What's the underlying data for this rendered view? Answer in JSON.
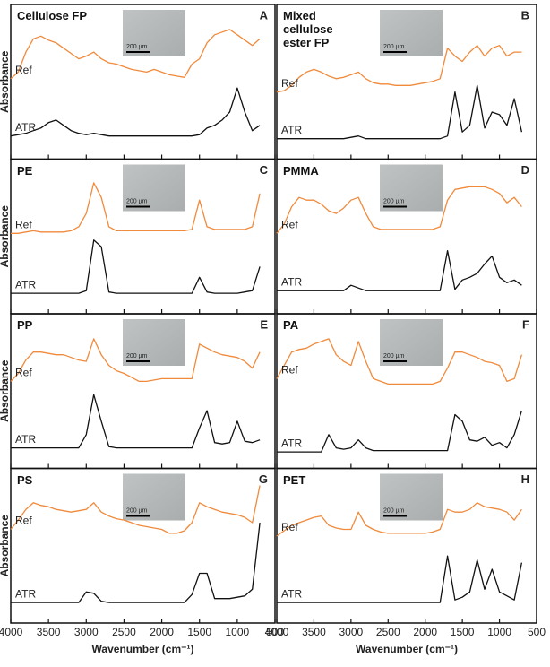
{
  "chart_data": [
    {
      "type": "line",
      "title": "Cellulose FP",
      "panel_label": "A",
      "inset_label": "200 µm",
      "y_label": "Absorbance",
      "x": [
        4000,
        3900,
        3800,
        3700,
        3600,
        3500,
        3400,
        3300,
        3200,
        3100,
        3000,
        2900,
        2800,
        2700,
        2600,
        2500,
        2400,
        2300,
        2200,
        2100,
        2000,
        1900,
        1800,
        1700,
        1600,
        1500,
        1400,
        1300,
        1200,
        1100,
        1000,
        900,
        800,
        700
      ],
      "series": [
        {
          "name": "Ref",
          "color": "#f08a3c",
          "values": [
            0.55,
            0.6,
            0.75,
            0.85,
            0.87,
            0.84,
            0.82,
            0.78,
            0.74,
            0.7,
            0.72,
            0.75,
            0.7,
            0.67,
            0.66,
            0.64,
            0.62,
            0.61,
            0.6,
            0.62,
            0.6,
            0.58,
            0.57,
            0.56,
            0.66,
            0.7,
            0.82,
            0.88,
            0.9,
            0.92,
            0.88,
            0.84,
            0.8,
            0.85
          ]
        },
        {
          "name": "ATR",
          "color": "#111111",
          "values": [
            0.12,
            0.13,
            0.14,
            0.16,
            0.18,
            0.22,
            0.24,
            0.2,
            0.16,
            0.14,
            0.13,
            0.14,
            0.13,
            0.12,
            0.12,
            0.12,
            0.12,
            0.12,
            0.12,
            0.12,
            0.12,
            0.12,
            0.12,
            0.12,
            0.12,
            0.13,
            0.18,
            0.2,
            0.24,
            0.3,
            0.48,
            0.3,
            0.16,
            0.2
          ]
        }
      ],
      "xlim": [
        4000,
        500
      ],
      "xticks": [
        4000,
        3500,
        3000,
        2500,
        2000,
        1500,
        1000,
        500
      ],
      "ylim": [
        0,
        1
      ]
    },
    {
      "type": "line",
      "title": "Mixed cellulose ester FP",
      "panel_label": "B",
      "inset_label": "200 µm",
      "x": [
        4000,
        3900,
        3800,
        3700,
        3600,
        3500,
        3400,
        3300,
        3200,
        3100,
        3000,
        2900,
        2800,
        2700,
        2600,
        2500,
        2400,
        2300,
        2200,
        2100,
        2000,
        1900,
        1800,
        1700,
        1600,
        1500,
        1400,
        1300,
        1200,
        1100,
        1000,
        900,
        800,
        700
      ],
      "series": [
        {
          "name": "Ref",
          "color": "#f08a3c",
          "values": [
            0.45,
            0.46,
            0.5,
            0.56,
            0.6,
            0.62,
            0.6,
            0.57,
            0.55,
            0.56,
            0.58,
            0.6,
            0.55,
            0.52,
            0.51,
            0.51,
            0.5,
            0.5,
            0.5,
            0.51,
            0.52,
            0.53,
            0.55,
            0.78,
            0.72,
            0.68,
            0.75,
            0.8,
            0.72,
            0.78,
            0.8,
            0.72,
            0.75,
            0.75
          ]
        },
        {
          "name": "ATR",
          "color": "#111111",
          "values": [
            0.1,
            0.1,
            0.1,
            0.1,
            0.1,
            0.1,
            0.1,
            0.1,
            0.1,
            0.1,
            0.11,
            0.12,
            0.1,
            0.1,
            0.1,
            0.1,
            0.1,
            0.1,
            0.1,
            0.1,
            0.1,
            0.1,
            0.1,
            0.12,
            0.45,
            0.15,
            0.2,
            0.5,
            0.18,
            0.3,
            0.28,
            0.2,
            0.4,
            0.15
          ]
        }
      ],
      "xlim": [
        4000,
        500
      ],
      "xticks": [
        4000,
        3500,
        3000,
        2500,
        2000,
        1500,
        1000,
        500
      ],
      "ylim": [
        0,
        1
      ]
    },
    {
      "type": "line",
      "title": "PE",
      "panel_label": "C",
      "inset_label": "200 µm",
      "y_label": "Absorbance",
      "x": [
        4000,
        3900,
        3800,
        3700,
        3600,
        3500,
        3400,
        3300,
        3200,
        3100,
        3000,
        2900,
        2800,
        2700,
        2600,
        2500,
        2400,
        2300,
        2200,
        2100,
        2000,
        1900,
        1800,
        1700,
        1600,
        1500,
        1400,
        1300,
        1200,
        1100,
        1000,
        900,
        800,
        700
      ],
      "series": [
        {
          "name": "Ref",
          "color": "#f08a3c",
          "values": [
            0.55,
            0.55,
            0.56,
            0.57,
            0.56,
            0.56,
            0.56,
            0.56,
            0.57,
            0.6,
            0.7,
            0.93,
            0.82,
            0.6,
            0.57,
            0.57,
            0.57,
            0.57,
            0.57,
            0.57,
            0.57,
            0.57,
            0.57,
            0.57,
            0.58,
            0.8,
            0.6,
            0.58,
            0.58,
            0.58,
            0.58,
            0.58,
            0.6,
            0.85
          ]
        },
        {
          "name": "ATR",
          "color": "#111111",
          "values": [
            0.1,
            0.1,
            0.1,
            0.1,
            0.1,
            0.1,
            0.1,
            0.1,
            0.1,
            0.1,
            0.12,
            0.5,
            0.45,
            0.11,
            0.1,
            0.1,
            0.1,
            0.1,
            0.1,
            0.1,
            0.1,
            0.1,
            0.1,
            0.1,
            0.1,
            0.22,
            0.11,
            0.1,
            0.1,
            0.1,
            0.1,
            0.11,
            0.12,
            0.3
          ]
        }
      ],
      "xlim": [
        4000,
        500
      ],
      "xticks": [
        4000,
        3500,
        3000,
        2500,
        2000,
        1500,
        1000,
        500
      ],
      "ylim": [
        0,
        1
      ]
    },
    {
      "type": "line",
      "title": "PMMA",
      "panel_label": "D",
      "inset_label": "200 µm",
      "x": [
        4000,
        3900,
        3800,
        3700,
        3600,
        3500,
        3400,
        3300,
        3200,
        3100,
        3000,
        2900,
        2800,
        2700,
        2600,
        2500,
        2400,
        2300,
        2200,
        2100,
        2000,
        1900,
        1800,
        1700,
        1600,
        1500,
        1400,
        1300,
        1200,
        1100,
        1000,
        900,
        800,
        700
      ],
      "series": [
        {
          "name": "Ref",
          "color": "#f08a3c",
          "values": [
            0.55,
            0.62,
            0.75,
            0.82,
            0.8,
            0.8,
            0.77,
            0.72,
            0.7,
            0.74,
            0.8,
            0.82,
            0.7,
            0.6,
            0.58,
            0.58,
            0.58,
            0.58,
            0.58,
            0.58,
            0.58,
            0.58,
            0.6,
            0.8,
            0.88,
            0.89,
            0.9,
            0.9,
            0.9,
            0.88,
            0.85,
            0.78,
            0.82,
            0.75
          ]
        },
        {
          "name": "ATR",
          "color": "#111111",
          "values": [
            0.12,
            0.12,
            0.12,
            0.12,
            0.12,
            0.12,
            0.12,
            0.12,
            0.12,
            0.12,
            0.16,
            0.14,
            0.12,
            0.12,
            0.12,
            0.12,
            0.12,
            0.12,
            0.12,
            0.12,
            0.12,
            0.12,
            0.12,
            0.42,
            0.13,
            0.2,
            0.22,
            0.25,
            0.32,
            0.38,
            0.22,
            0.18,
            0.2,
            0.16
          ]
        }
      ],
      "xlim": [
        4000,
        500
      ],
      "xticks": [
        4000,
        3500,
        3000,
        2500,
        2000,
        1500,
        1000,
        500
      ],
      "ylim": [
        0,
        1
      ]
    },
    {
      "type": "line",
      "title": "PP",
      "panel_label": "E",
      "inset_label": "200 µm",
      "y_label": "Absorbance",
      "x": [
        4000,
        3900,
        3800,
        3700,
        3600,
        3500,
        3400,
        3300,
        3200,
        3100,
        3000,
        2900,
        2800,
        2700,
        2600,
        2500,
        2400,
        2300,
        2200,
        2100,
        2000,
        1900,
        1800,
        1700,
        1600,
        1500,
        1400,
        1300,
        1200,
        1100,
        1000,
        900,
        800,
        700
      ],
      "series": [
        {
          "name": "Ref",
          "color": "#f08a3c",
          "values": [
            0.6,
            0.66,
            0.76,
            0.82,
            0.82,
            0.81,
            0.8,
            0.8,
            0.78,
            0.76,
            0.75,
            0.92,
            0.8,
            0.72,
            0.68,
            0.66,
            0.63,
            0.6,
            0.6,
            0.61,
            0.62,
            0.62,
            0.62,
            0.62,
            0.62,
            0.88,
            0.85,
            0.82,
            0.8,
            0.79,
            0.78,
            0.75,
            0.7,
            0.82
          ]
        },
        {
          "name": "ATR",
          "color": "#111111",
          "values": [
            0.1,
            0.1,
            0.1,
            0.1,
            0.1,
            0.1,
            0.1,
            0.1,
            0.1,
            0.1,
            0.2,
            0.5,
            0.3,
            0.11,
            0.1,
            0.1,
            0.1,
            0.1,
            0.1,
            0.1,
            0.1,
            0.1,
            0.1,
            0.1,
            0.1,
            0.25,
            0.38,
            0.14,
            0.13,
            0.14,
            0.3,
            0.15,
            0.14,
            0.16
          ]
        }
      ],
      "xlim": [
        4000,
        500
      ],
      "xticks": [
        4000,
        3500,
        3000,
        2500,
        2000,
        1500,
        1000,
        500
      ],
      "ylim": [
        0,
        1
      ]
    },
    {
      "type": "line",
      "title": "PA",
      "panel_label": "F",
      "inset_label": "200 µm",
      "x": [
        4000,
        3900,
        3800,
        3700,
        3600,
        3500,
        3400,
        3300,
        3200,
        3100,
        3000,
        2900,
        2800,
        2700,
        2600,
        2500,
        2400,
        2300,
        2200,
        2100,
        2000,
        1900,
        1800,
        1700,
        1600,
        1500,
        1400,
        1300,
        1200,
        1100,
        1000,
        900,
        800,
        700
      ],
      "series": [
        {
          "name": "Ref",
          "color": "#f08a3c",
          "values": [
            0.62,
            0.72,
            0.82,
            0.84,
            0.85,
            0.88,
            0.9,
            0.92,
            0.8,
            0.75,
            0.72,
            0.9,
            0.75,
            0.62,
            0.6,
            0.58,
            0.58,
            0.58,
            0.58,
            0.58,
            0.58,
            0.58,
            0.6,
            0.7,
            0.82,
            0.82,
            0.8,
            0.78,
            0.75,
            0.74,
            0.72,
            0.6,
            0.62,
            0.8
          ]
        },
        {
          "name": "ATR",
          "color": "#111111",
          "values": [
            0.07,
            0.07,
            0.07,
            0.07,
            0.07,
            0.07,
            0.07,
            0.2,
            0.1,
            0.09,
            0.1,
            0.16,
            0.1,
            0.08,
            0.08,
            0.08,
            0.08,
            0.08,
            0.08,
            0.08,
            0.08,
            0.08,
            0.08,
            0.08,
            0.35,
            0.3,
            0.16,
            0.15,
            0.18,
            0.12,
            0.14,
            0.1,
            0.2,
            0.38
          ]
        }
      ],
      "xlim": [
        4000,
        500
      ],
      "xticks": [
        4000,
        3500,
        3000,
        2500,
        2000,
        1500,
        1000,
        500
      ],
      "ylim": [
        0,
        1
      ]
    },
    {
      "type": "line",
      "title": "PS",
      "panel_label": "G",
      "inset_label": "200 µm",
      "y_label": "Absorbance",
      "x_label": "Wavenumber (cm⁻¹)",
      "x": [
        4000,
        3900,
        3800,
        3700,
        3600,
        3500,
        3400,
        3300,
        3200,
        3100,
        3000,
        2900,
        2800,
        2700,
        2600,
        2500,
        2400,
        2300,
        2200,
        2100,
        2000,
        1900,
        1800,
        1700,
        1600,
        1500,
        1400,
        1300,
        1200,
        1100,
        1000,
        900,
        800,
        700
      ],
      "series": [
        {
          "name": "Ref",
          "color": "#f08a3c",
          "values": [
            0.65,
            0.72,
            0.8,
            0.85,
            0.83,
            0.82,
            0.8,
            0.79,
            0.78,
            0.79,
            0.8,
            0.85,
            0.78,
            0.75,
            0.73,
            0.72,
            0.7,
            0.68,
            0.67,
            0.66,
            0.65,
            0.62,
            0.62,
            0.64,
            0.7,
            0.85,
            0.82,
            0.8,
            0.78,
            0.77,
            0.76,
            0.74,
            0.7,
            0.98
          ]
        },
        {
          "name": "ATR",
          "color": "#111111",
          "values": [
            0.1,
            0.1,
            0.1,
            0.1,
            0.1,
            0.1,
            0.1,
            0.1,
            0.1,
            0.1,
            0.18,
            0.17,
            0.11,
            0.1,
            0.1,
            0.1,
            0.1,
            0.1,
            0.1,
            0.1,
            0.1,
            0.1,
            0.1,
            0.1,
            0.16,
            0.32,
            0.32,
            0.13,
            0.13,
            0.13,
            0.14,
            0.15,
            0.2,
            0.7
          ]
        }
      ],
      "xlim": [
        4000,
        500
      ],
      "xticks": [
        4000,
        3500,
        3000,
        2500,
        2000,
        1500,
        1000,
        500
      ],
      "ylim": [
        0,
        1
      ]
    },
    {
      "type": "line",
      "title": "PET",
      "panel_label": "H",
      "inset_label": "200 µm",
      "x_label": "Wavenumber (cm⁻¹)",
      "x": [
        4000,
        3900,
        3800,
        3700,
        3600,
        3500,
        3400,
        3300,
        3200,
        3100,
        3000,
        2900,
        2800,
        2700,
        2600,
        2500,
        2400,
        2300,
        2200,
        2100,
        2000,
        1900,
        1800,
        1700,
        1600,
        1500,
        1400,
        1300,
        1200,
        1100,
        1000,
        900,
        800,
        700
      ],
      "series": [
        {
          "name": "Ref",
          "color": "#f08a3c",
          "values": [
            0.6,
            0.64,
            0.68,
            0.7,
            0.72,
            0.74,
            0.75,
            0.68,
            0.66,
            0.65,
            0.65,
            0.78,
            0.68,
            0.65,
            0.63,
            0.62,
            0.62,
            0.62,
            0.62,
            0.62,
            0.62,
            0.63,
            0.65,
            0.8,
            0.78,
            0.78,
            0.8,
            0.85,
            0.82,
            0.81,
            0.8,
            0.78,
            0.72,
            0.8
          ]
        },
        {
          "name": "ATR",
          "color": "#111111",
          "values": [
            0.1,
            0.1,
            0.1,
            0.1,
            0.1,
            0.1,
            0.1,
            0.1,
            0.1,
            0.1,
            0.1,
            0.1,
            0.1,
            0.1,
            0.1,
            0.1,
            0.1,
            0.1,
            0.1,
            0.1,
            0.1,
            0.1,
            0.1,
            0.45,
            0.12,
            0.14,
            0.18,
            0.42,
            0.2,
            0.35,
            0.18,
            0.15,
            0.12,
            0.4
          ]
        }
      ],
      "xlim": [
        4000,
        500
      ],
      "xticks": [
        4000,
        3500,
        3000,
        2500,
        2000,
        1500,
        1000,
        500
      ],
      "ylim": [
        0,
        1
      ]
    }
  ]
}
